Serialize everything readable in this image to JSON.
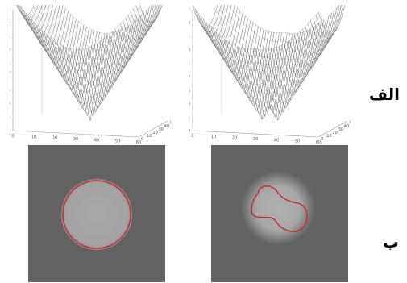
{
  "figure": {
    "row_labels": {
      "top": "الف",
      "bottom": "ب"
    }
  },
  "chart_data": [
    {
      "type": "surface",
      "title": "",
      "panel": "top-left",
      "zlim": [
        -10,
        35
      ],
      "z_ticks": [
        -10,
        -5,
        0,
        5,
        10,
        15,
        20,
        25,
        30,
        35
      ],
      "x_ticks": [
        0,
        10,
        20,
        30,
        40,
        50,
        60
      ],
      "y_ticks": [
        0,
        10,
        20,
        30,
        40,
        50
      ],
      "shape": "single cone (distance function to a circle)"
    },
    {
      "type": "surface",
      "title": "",
      "panel": "top-right",
      "zlim": [
        -10,
        35
      ],
      "z_ticks": [
        -10,
        -5,
        0,
        5,
        10,
        15,
        20,
        25,
        30,
        35
      ],
      "x_ticks": [
        0,
        10,
        20,
        30,
        40,
        50,
        60
      ],
      "y_ticks": [
        0,
        10,
        20,
        30,
        40,
        50
      ],
      "shape": "two-minimum surface (distance function to a bean-shaped contour)"
    }
  ],
  "images": {
    "bottom_left": {
      "contour_color": "#cc2a2a",
      "contour": "circle"
    },
    "bottom_right": {
      "contour_color": "#cc2a2a",
      "contour": "bean"
    }
  }
}
